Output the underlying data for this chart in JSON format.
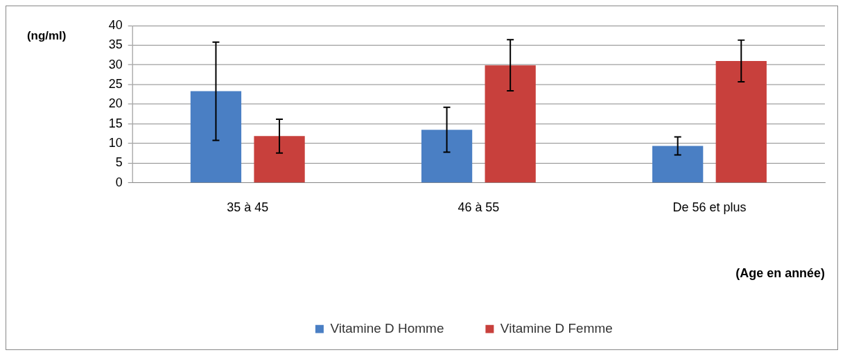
{
  "chart_data": {
    "type": "bar",
    "ylabel": "(ng/ml)",
    "xlabel": "(Age en année)",
    "categories": [
      "35 à 45",
      "46 à 55",
      "De 56 et plus"
    ],
    "series": [
      {
        "name": "Vitamine D Homme",
        "color": "#4a7fc4",
        "values": [
          23.3,
          13.5,
          9.4
        ],
        "errors": [
          12.5,
          5.7,
          2.3
        ]
      },
      {
        "name": "Vitamine D Femme",
        "color": "#c8403c",
        "values": [
          11.9,
          29.9,
          31.0
        ],
        "errors": [
          4.3,
          6.5,
          5.3
        ]
      }
    ],
    "ylim": [
      0,
      40
    ],
    "yticks": [
      0,
      5,
      10,
      15,
      20,
      25,
      30,
      35,
      40
    ],
    "grid": "y",
    "legend": "bottom"
  }
}
